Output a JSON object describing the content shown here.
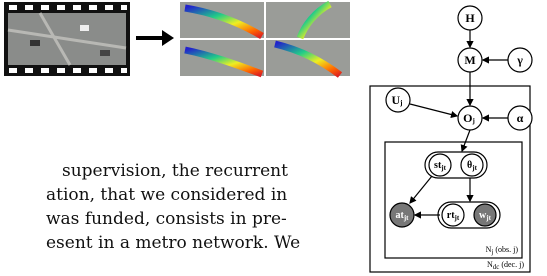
{
  "paragraph": {
    "lines": [
      "supervision, the recurrent",
      "ation, that we considered in",
      "was funded, consists in pre-",
      "esent in a metro network. We"
    ]
  },
  "diagram": {
    "nodes": [
      {
        "base": "H"
      },
      {
        "base": "M"
      },
      {
        "base": "γ"
      },
      {
        "base": "U",
        "sub": "j"
      },
      {
        "base": "O",
        "sub": "j"
      },
      {
        "base": "α"
      },
      {
        "base": "st",
        "sub": "jt"
      },
      {
        "base": "θ",
        "sub": "jt"
      },
      {
        "base": "at",
        "sub": "jt"
      },
      {
        "base": "rt",
        "sub": "jt"
      },
      {
        "base": "w",
        "sub": "jt"
      }
    ],
    "plates": [
      {
        "base": "N",
        "sub": "j",
        "note": "(obs. j)"
      },
      {
        "base": "N",
        "sub": "dc",
        "note": "(dec. j)"
      }
    ]
  }
}
